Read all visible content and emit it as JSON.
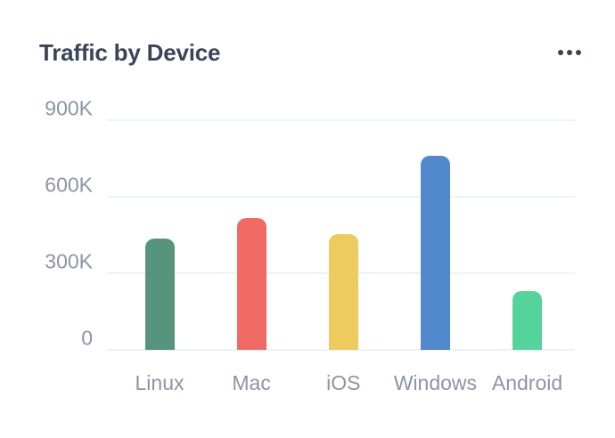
{
  "card": {
    "title": "Traffic by Device",
    "menu_icon": "ellipsis-icon"
  },
  "chart_data": {
    "type": "bar",
    "title": "Traffic by Device",
    "categories": [
      "Linux",
      "Mac",
      "iOS",
      "Windows",
      "Android"
    ],
    "values": [
      435000,
      515000,
      455000,
      760000,
      230000
    ],
    "values_k": [
      435,
      515,
      455,
      760,
      230
    ],
    "colors": [
      "#56947D",
      "#EF6A63",
      "#EDCB5F",
      "#5289CE",
      "#54D39C"
    ],
    "bar_color_names": [
      "green",
      "red",
      "yellow",
      "blue",
      "emerald"
    ],
    "yticks": [
      {
        "value_k": 900,
        "label": "900K"
      },
      {
        "value_k": 600,
        "label": "600K"
      },
      {
        "value_k": 300,
        "label": "300K"
      },
      {
        "value_k": 0,
        "label": "0"
      }
    ],
    "ylim_k": [
      0,
      900
    ],
    "xlabel": "",
    "ylabel": "",
    "grid": true,
    "legend": false,
    "axis_text_color": "#8B95A5",
    "gridline_color": "#EDF2F7"
  }
}
